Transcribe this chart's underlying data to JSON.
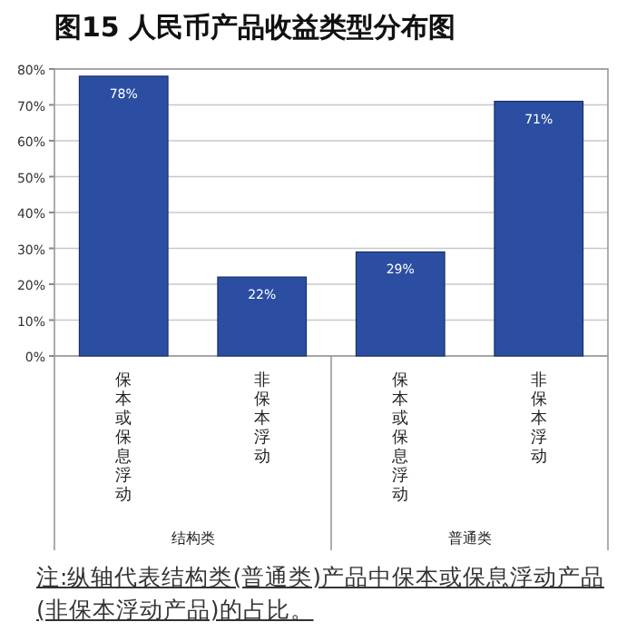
{
  "chart_data": {
    "type": "bar",
    "title": "图15 人民币产品收益类型分布图",
    "categories": [
      "保本或保息浮动",
      "非保本浮动",
      "保本或保息浮动",
      "非保本浮动"
    ],
    "values": [
      78,
      22,
      29,
      71
    ],
    "value_labels": [
      "78%",
      "22%",
      "29%",
      "71%"
    ],
    "color": "#2b4ea2",
    "ylim": [
      0,
      80
    ],
    "yticks": [
      {
        "value": 0,
        "label": "0%"
      },
      {
        "value": 10,
        "label": "10%"
      },
      {
        "value": 20,
        "label": "20%"
      },
      {
        "value": 30,
        "label": "30%"
      },
      {
        "value": 40,
        "label": "40%"
      },
      {
        "value": 50,
        "label": "50%"
      },
      {
        "value": 60,
        "label": "60%"
      },
      {
        "value": 70,
        "label": "70%"
      },
      {
        "value": 80,
        "label": "80%"
      }
    ],
    "grid": "y",
    "annotations": [
      "结构类",
      "普通类",
      "注:纵轴代表结构类(普通类)产品中保本或保息浮动产品(非保本浮动产品)的占比。"
    ]
  }
}
